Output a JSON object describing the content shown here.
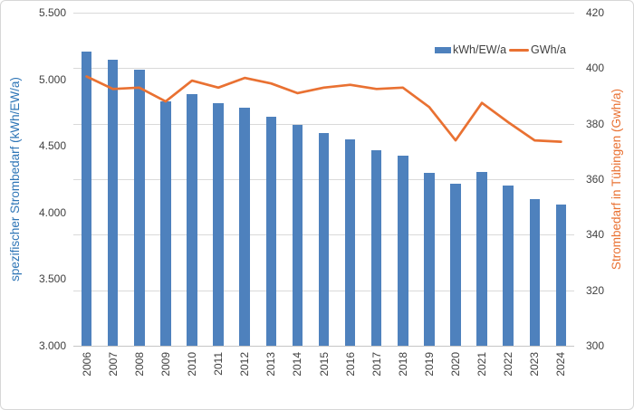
{
  "chart_data": {
    "type": "bar",
    "combo": "bar + line, dual y-axes",
    "title": "",
    "categories": [
      "2006",
      "2007",
      "2008",
      "2009",
      "2010",
      "2011",
      "2012",
      "2013",
      "2014",
      "2015",
      "2016",
      "2017",
      "2018",
      "2019",
      "2020",
      "2021",
      "2022",
      "2023",
      "2024"
    ],
    "series": [
      {
        "name": "kWh/EW/a",
        "type": "bar",
        "axis": "left",
        "color": "#4e81bd",
        "values": [
          5210,
          5150,
          5075,
          4835,
          4890,
          4820,
          4790,
          4720,
          4660,
          4595,
          4550,
          4470,
          4430,
          4300,
          4215,
          4305,
          4205,
          4100,
          4060
        ]
      },
      {
        "name": "GWh/a",
        "type": "line",
        "axis": "right",
        "color": "#e97132",
        "values": [
          397,
          392.5,
          393,
          388,
          395.5,
          393,
          396.5,
          394.5,
          391,
          393,
          394,
          392.5,
          393,
          386,
          374,
          387.5,
          380.5,
          374,
          373.5
        ]
      }
    ],
    "left_axis": {
      "title": "spezifischer Strombedarf (kWh/EW/a)",
      "title_color": "#2e75b6",
      "min": 3000,
      "max": 5500,
      "step": 500,
      "tick_labels": [
        "5.500",
        "5.000",
        "4.500",
        "4.000",
        "3.500",
        "3.000"
      ]
    },
    "right_axis": {
      "title": "Strombedarf in Tübingen (Gwh/a)",
      "title_color": "#e97132",
      "min": 300,
      "max": 420,
      "step": 20,
      "tick_labels": [
        "420",
        "400",
        "380",
        "360",
        "340",
        "320",
        "300"
      ]
    },
    "grid": "horizontal gridlines aligned to right-axis ticks",
    "legend_position": "top-right inside plot",
    "x_tick_rotation": -90
  }
}
